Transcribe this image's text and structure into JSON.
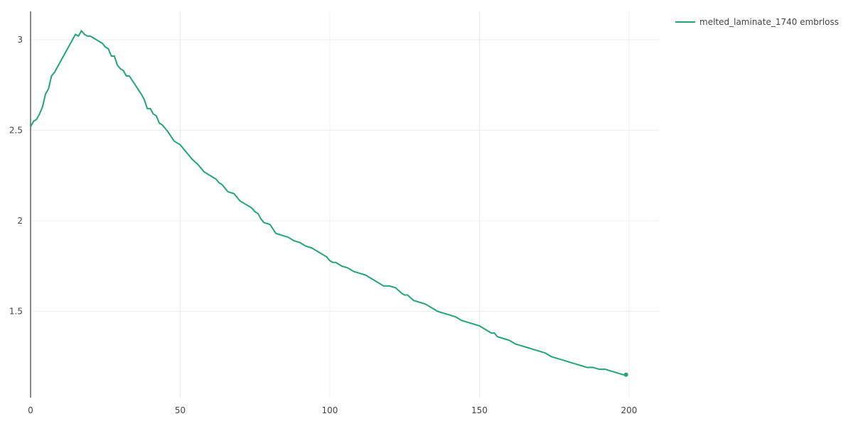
{
  "chart_data": {
    "type": "line",
    "title": "",
    "xlabel": "",
    "ylabel": "",
    "xlim": [
      0,
      210
    ],
    "ylim": [
      1.1,
      3.15
    ],
    "xticks": [
      0,
      50,
      100,
      150,
      200
    ],
    "yticks": [
      1.5,
      2,
      2.5,
      3
    ],
    "xtick_labels": [
      "0",
      "50",
      "100",
      "150",
      "200"
    ],
    "ytick_labels": [
      "1.5",
      "2",
      "2.5",
      "3"
    ],
    "grid": true,
    "legend_position": "top-right",
    "series": [
      {
        "name": "melted_laminate_1740 embrloss",
        "color": "#23a37a",
        "x": [
          0,
          1,
          2,
          3,
          4,
          5,
          6,
          7,
          8,
          10,
          12,
          14,
          15,
          16,
          17,
          18,
          19,
          20,
          22,
          24,
          25,
          26,
          27,
          28,
          29,
          30,
          31,
          32,
          33,
          35,
          37,
          38,
          39,
          40,
          41,
          42,
          43,
          44,
          46,
          48,
          50,
          52,
          54,
          56,
          58,
          60,
          62,
          63,
          64,
          66,
          68,
          70,
          72,
          74,
          75,
          76,
          77,
          78,
          80,
          82,
          84,
          86,
          88,
          90,
          92,
          94,
          95,
          96,
          97,
          98,
          99,
          100,
          101,
          102,
          104,
          106,
          108,
          110,
          112,
          114,
          116,
          117,
          118,
          119,
          120,
          122,
          124,
          125,
          126,
          128,
          130,
          132,
          134,
          136,
          138,
          140,
          142,
          144,
          146,
          148,
          150,
          152,
          154,
          155,
          156,
          158,
          160,
          162,
          164,
          166,
          168,
          170,
          172,
          174,
          176,
          178,
          180,
          182,
          184,
          186,
          188,
          190,
          192,
          194,
          196,
          198,
          199
        ],
        "values": [
          2.52,
          2.55,
          2.56,
          2.59,
          2.63,
          2.7,
          2.73,
          2.8,
          2.82,
          2.88,
          2.94,
          3.0,
          3.03,
          3.02,
          3.05,
          3.03,
          3.02,
          3.02,
          3.0,
          2.98,
          2.96,
          2.95,
          2.91,
          2.91,
          2.86,
          2.84,
          2.83,
          2.8,
          2.8,
          2.75,
          2.7,
          2.67,
          2.62,
          2.62,
          2.59,
          2.58,
          2.54,
          2.53,
          2.49,
          2.44,
          2.42,
          2.38,
          2.34,
          2.31,
          2.27,
          2.25,
          2.23,
          2.21,
          2.2,
          2.16,
          2.15,
          2.11,
          2.09,
          2.07,
          2.05,
          2.04,
          2.01,
          1.99,
          1.98,
          1.93,
          1.92,
          1.91,
          1.89,
          1.88,
          1.86,
          1.85,
          1.84,
          1.83,
          1.82,
          1.81,
          1.8,
          1.78,
          1.77,
          1.77,
          1.75,
          1.74,
          1.72,
          1.71,
          1.7,
          1.68,
          1.66,
          1.65,
          1.64,
          1.64,
          1.64,
          1.63,
          1.6,
          1.59,
          1.59,
          1.56,
          1.55,
          1.54,
          1.52,
          1.5,
          1.49,
          1.48,
          1.47,
          1.45,
          1.44,
          1.43,
          1.42,
          1.4,
          1.38,
          1.38,
          1.36,
          1.35,
          1.34,
          1.32,
          1.31,
          1.3,
          1.29,
          1.28,
          1.27,
          1.25,
          1.24,
          1.23,
          1.22,
          1.21,
          1.2,
          1.19,
          1.19,
          1.18,
          1.18,
          1.17,
          1.16,
          1.15,
          1.15
        ]
      }
    ]
  }
}
